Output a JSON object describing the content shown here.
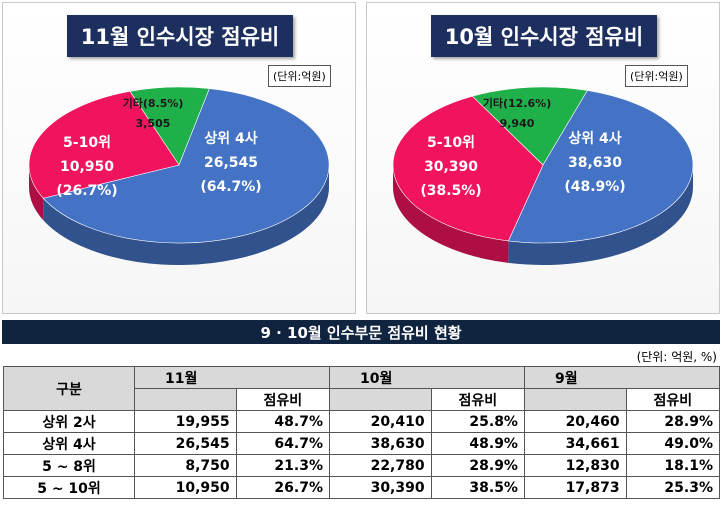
{
  "chart_data": [
    {
      "type": "pie",
      "title": "11월 인수시장 점유비",
      "unit_label": "(단위:억원)",
      "slices": [
        {
          "name": "상위 4사",
          "value": 26545,
          "percent_label": "(64.7%)",
          "value_label": "26,545",
          "color": "#4472c4"
        },
        {
          "name": "5-10위",
          "value": 10950,
          "percent_label": "(26.7%)",
          "value_label": "10,950",
          "color": "#f0135e"
        },
        {
          "name": "기타(8.5%)",
          "value": 3505,
          "percent_label": "",
          "value_label": "3,505",
          "color": "#1fb04a"
        }
      ]
    },
    {
      "type": "pie",
      "title": "10월 인수시장 점유비",
      "unit_label": "(단위:억원)",
      "slices": [
        {
          "name": "상위 4사",
          "value": 38630,
          "percent_label": "(48.9%)",
          "value_label": "38,630",
          "color": "#4472c4"
        },
        {
          "name": "5-10위",
          "value": 30390,
          "percent_label": "(38.5%)",
          "value_label": "30,390",
          "color": "#f0135e"
        },
        {
          "name": "기타(12.6%)",
          "value": 9940,
          "percent_label": "",
          "value_label": "9,940",
          "color": "#1fb04a"
        }
      ]
    }
  ],
  "table": {
    "title": "9 · 10월 인수부문 점유비 현황",
    "unit": "(단위: 억원, %)",
    "col_category": "구분",
    "months": [
      "11월",
      "10월",
      "9월"
    ],
    "share_label": "점유비",
    "rows": [
      {
        "category": "상위 2사",
        "values": [
          "19,955",
          "48.7%",
          "20,410",
          "25.8%",
          "20,460",
          "28.9%"
        ]
      },
      {
        "category": "상위 4사",
        "values": [
          "26,545",
          "64.7%",
          "38,630",
          "48.9%",
          "34,661",
          "49.0%"
        ]
      },
      {
        "category": "5 ~ 8위",
        "values": [
          "8,750",
          "21.3%",
          "22,780",
          "28.9%",
          "12,830",
          "18.1%"
        ]
      },
      {
        "category": "5 ~ 10위",
        "values": [
          "10,950",
          "26.7%",
          "30,390",
          "38.5%",
          "17,873",
          "25.3%"
        ]
      }
    ]
  }
}
